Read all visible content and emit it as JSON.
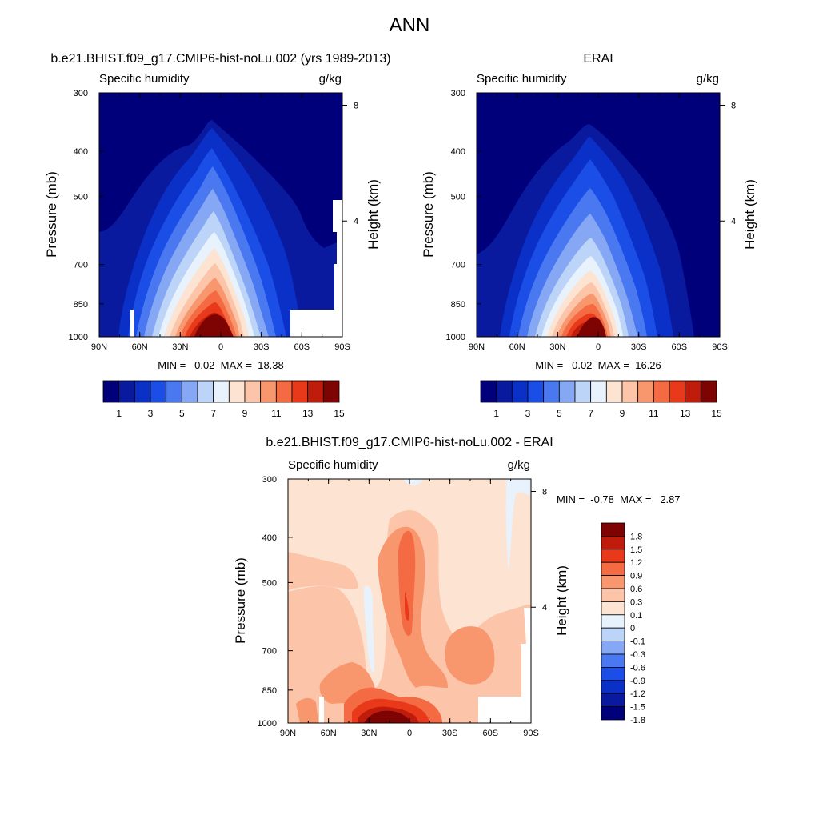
{
  "page_title": "ANN",
  "chart_data": [
    {
      "type": "heatmap",
      "title": "b.e21.BHIST.f09_g17.CMIP6-hist-noLu.002 (yrs 1989-2013)",
      "left_label": "Specific humidity",
      "right_label": "g/kg",
      "ylabel": "Pressure (mb)",
      "y2label": "Height (km)",
      "x_ticks": [
        "90N",
        "60N",
        "30N",
        "0",
        "30S",
        "60S",
        "90S"
      ],
      "y_ticks": [
        300,
        400,
        500,
        700,
        850,
        1000
      ],
      "y2_ticks": [
        8,
        4
      ],
      "stats_text": "MIN =   0.02  MAX =  18.38",
      "min": 0.02,
      "max": 18.38,
      "colorbar_colors": [
        "#00007a",
        "#0a1a9e",
        "#0a30c8",
        "#1a4ee6",
        "#4a78f0",
        "#86a8f4",
        "#bcd4f8",
        "#e8f2fc",
        "#fde4d2",
        "#fcc4a8",
        "#f8966e",
        "#f46a42",
        "#e83a1a",
        "#c01c0c",
        "#7e0404"
      ],
      "colorbar_labels": [
        "1",
        "3",
        "5",
        "7",
        "9",
        "11",
        "13",
        "15"
      ],
      "colorbar_levels": [
        1,
        2,
        3,
        4,
        5,
        6,
        7,
        8,
        9,
        10,
        11,
        12,
        13,
        14
      ]
    },
    {
      "type": "heatmap",
      "title": "ERAI",
      "left_label": "Specific humidity",
      "right_label": "g/kg",
      "ylabel": "Pressure (mb)",
      "y2label": "Height (km)",
      "x_ticks": [
        "90N",
        "60N",
        "30N",
        "0",
        "30S",
        "60S",
        "90S"
      ],
      "y_ticks": [
        300,
        400,
        500,
        700,
        850,
        1000
      ],
      "y2_ticks": [
        8,
        4
      ],
      "stats_text": "MIN =   0.02  MAX =  16.26",
      "min": 0.02,
      "max": 16.26,
      "colorbar_colors": [
        "#00007a",
        "#0a1a9e",
        "#0a30c8",
        "#1a4ee6",
        "#4a78f0",
        "#86a8f4",
        "#bcd4f8",
        "#e8f2fc",
        "#fde4d2",
        "#fcc4a8",
        "#f8966e",
        "#f46a42",
        "#e83a1a",
        "#c01c0c",
        "#7e0404"
      ],
      "colorbar_labels": [
        "1",
        "3",
        "5",
        "7",
        "9",
        "11",
        "13",
        "15"
      ],
      "colorbar_levels": [
        1,
        2,
        3,
        4,
        5,
        6,
        7,
        8,
        9,
        10,
        11,
        12,
        13,
        14
      ]
    },
    {
      "type": "heatmap",
      "title": "b.e21.BHIST.f09_g17.CMIP6-hist-noLu.002 - ERAI",
      "left_label": "Specific humidity",
      "right_label": "g/kg",
      "ylabel": "Pressure (mb)",
      "y2label": "Height (km)",
      "x_ticks": [
        "90N",
        "60N",
        "30N",
        "0",
        "30S",
        "60S",
        "90S"
      ],
      "y_ticks": [
        300,
        400,
        500,
        700,
        850,
        1000
      ],
      "y2_ticks": [
        8,
        4
      ],
      "stats_text": "MIN =  -0.78  MAX =   2.87",
      "min": -0.78,
      "max": 2.87,
      "colorbar_colors": [
        "#00007a",
        "#0a1a9e",
        "#0a30c8",
        "#1a4ee6",
        "#4a78f0",
        "#86a8f4",
        "#bcd4f8",
        "#e8f2fc",
        "#fde4d2",
        "#fcc4a8",
        "#f8966e",
        "#f46a42",
        "#e83a1a",
        "#c01c0c",
        "#7e0404"
      ],
      "colorbar_labels": [
        "1.8",
        "1.5",
        "1.2",
        "0.9",
        "0.6",
        "0.3",
        "0.1",
        "0",
        "-0.1",
        "-0.3",
        "-0.6",
        "-0.9",
        "-1.2",
        "-1.5",
        "-1.8"
      ],
      "colorbar_levels": [
        -1.8,
        -1.5,
        -1.2,
        -0.9,
        -0.6,
        -0.3,
        -0.1,
        0,
        0.1,
        0.3,
        0.6,
        0.9,
        1.2,
        1.5,
        1.8
      ]
    }
  ]
}
